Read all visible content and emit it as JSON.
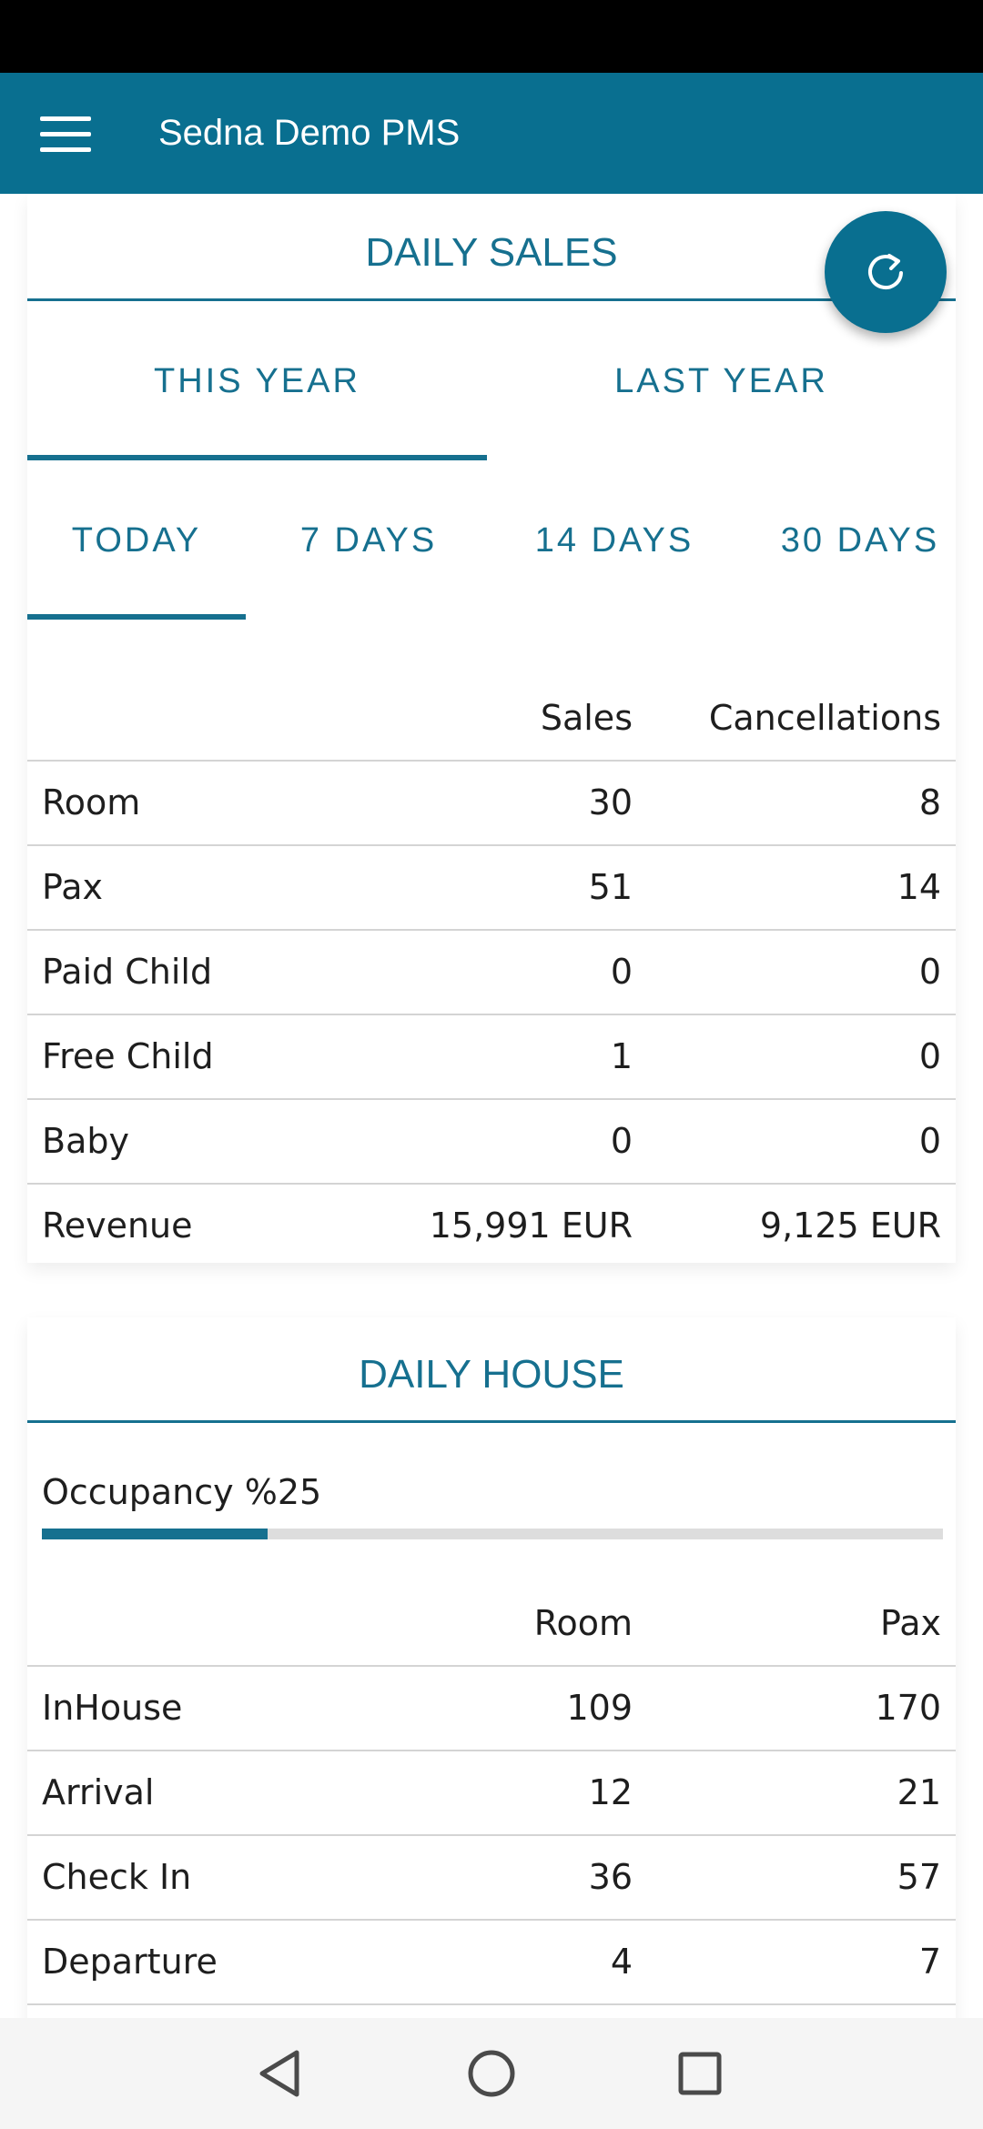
{
  "app": {
    "title": "Sedna Demo PMS",
    "accent_color": "#096f90"
  },
  "icons": {
    "menu": "hamburger-menu-icon",
    "refresh": "refresh-icon",
    "back": "back-triangle-icon",
    "home": "home-circle-icon",
    "recents": "recents-square-icon"
  },
  "daily_sales": {
    "title": "DAILY SALES",
    "year_tabs": [
      {
        "label": "THIS YEAR",
        "selected": true
      },
      {
        "label": "LAST YEAR",
        "selected": false
      }
    ],
    "period_tabs": [
      {
        "label": "TODAY",
        "selected": true
      },
      {
        "label": "7 DAYS",
        "selected": false
      },
      {
        "label": "14 DAYS",
        "selected": false
      },
      {
        "label": "30 DAYS",
        "selected": false
      }
    ],
    "columns": [
      "Sales",
      "Cancellations"
    ],
    "rows": [
      {
        "label": "Room",
        "sales": "30",
        "cancellations": "8"
      },
      {
        "label": "Pax",
        "sales": "51",
        "cancellations": "14"
      },
      {
        "label": "Paid Child",
        "sales": "0",
        "cancellations": "0"
      },
      {
        "label": "Free Child",
        "sales": "1",
        "cancellations": "0"
      },
      {
        "label": "Baby",
        "sales": "0",
        "cancellations": "0"
      },
      {
        "label": "Revenue",
        "sales": "15,991 EUR",
        "cancellations": "9,125 EUR"
      }
    ]
  },
  "daily_house": {
    "title": "DAILY HOUSE",
    "occupancy_label": "Occupancy %25",
    "occupancy_fraction": 0.25,
    "columns": [
      "Room",
      "Pax"
    ],
    "rows": [
      {
        "label": "InHouse",
        "room": "109",
        "pax": "170"
      },
      {
        "label": "Arrival",
        "room": "12",
        "pax": "21"
      },
      {
        "label": "Check In",
        "room": "36",
        "pax": "57"
      },
      {
        "label": "Departure",
        "room": "4",
        "pax": "7"
      }
    ]
  }
}
